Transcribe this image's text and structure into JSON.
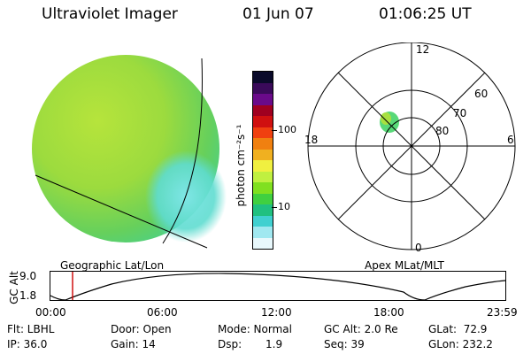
{
  "header": {
    "instrument": "Ultraviolet Imager",
    "date": "01 Jun 07",
    "time": "01:06:25 UT"
  },
  "geo_panel": {
    "label": "Geographic Lat/Lon"
  },
  "colorbar": {
    "unit_label": "photon cm⁻²s⁻¹",
    "ticks": [
      "100",
      "10"
    ],
    "colors": [
      "#0a0a2a",
      "#3a0a5a",
      "#6a0a8a",
      "#a00020",
      "#d01010",
      "#f04010",
      "#f08010",
      "#f0b020",
      "#f0f040",
      "#c0f040",
      "#80e020",
      "#40d040",
      "#20c080",
      "#40d0d0",
      "#a0e8f0",
      "#e8f8fc"
    ]
  },
  "polar": {
    "label": "Apex MLat/MLT",
    "mlt_labels": {
      "top": "12",
      "left": "18",
      "right": "6",
      "bottom": "0"
    },
    "lat_labels": [
      "60",
      "70",
      "80"
    ]
  },
  "altitude_strip": {
    "axis_label": "GC Alt",
    "y_ticks": [
      "9.0",
      "1.8"
    ],
    "x_ticks": [
      "00:00",
      "06:00",
      "12:00",
      "18:00",
      "23:59"
    ]
  },
  "footer": {
    "flt": "Flt: LBHL",
    "ip": "IP: 36.0",
    "door": "Door: Open",
    "gain": "Gain: 14",
    "mode": "Mode: Normal",
    "dsp_label": "Dsp:",
    "dsp_value": "1.9",
    "gc_alt": "GC Alt: 2.0 Re",
    "seq": "Seq: 39",
    "glat": "GLat:  72.9",
    "glon": "GLon: 232.2"
  }
}
